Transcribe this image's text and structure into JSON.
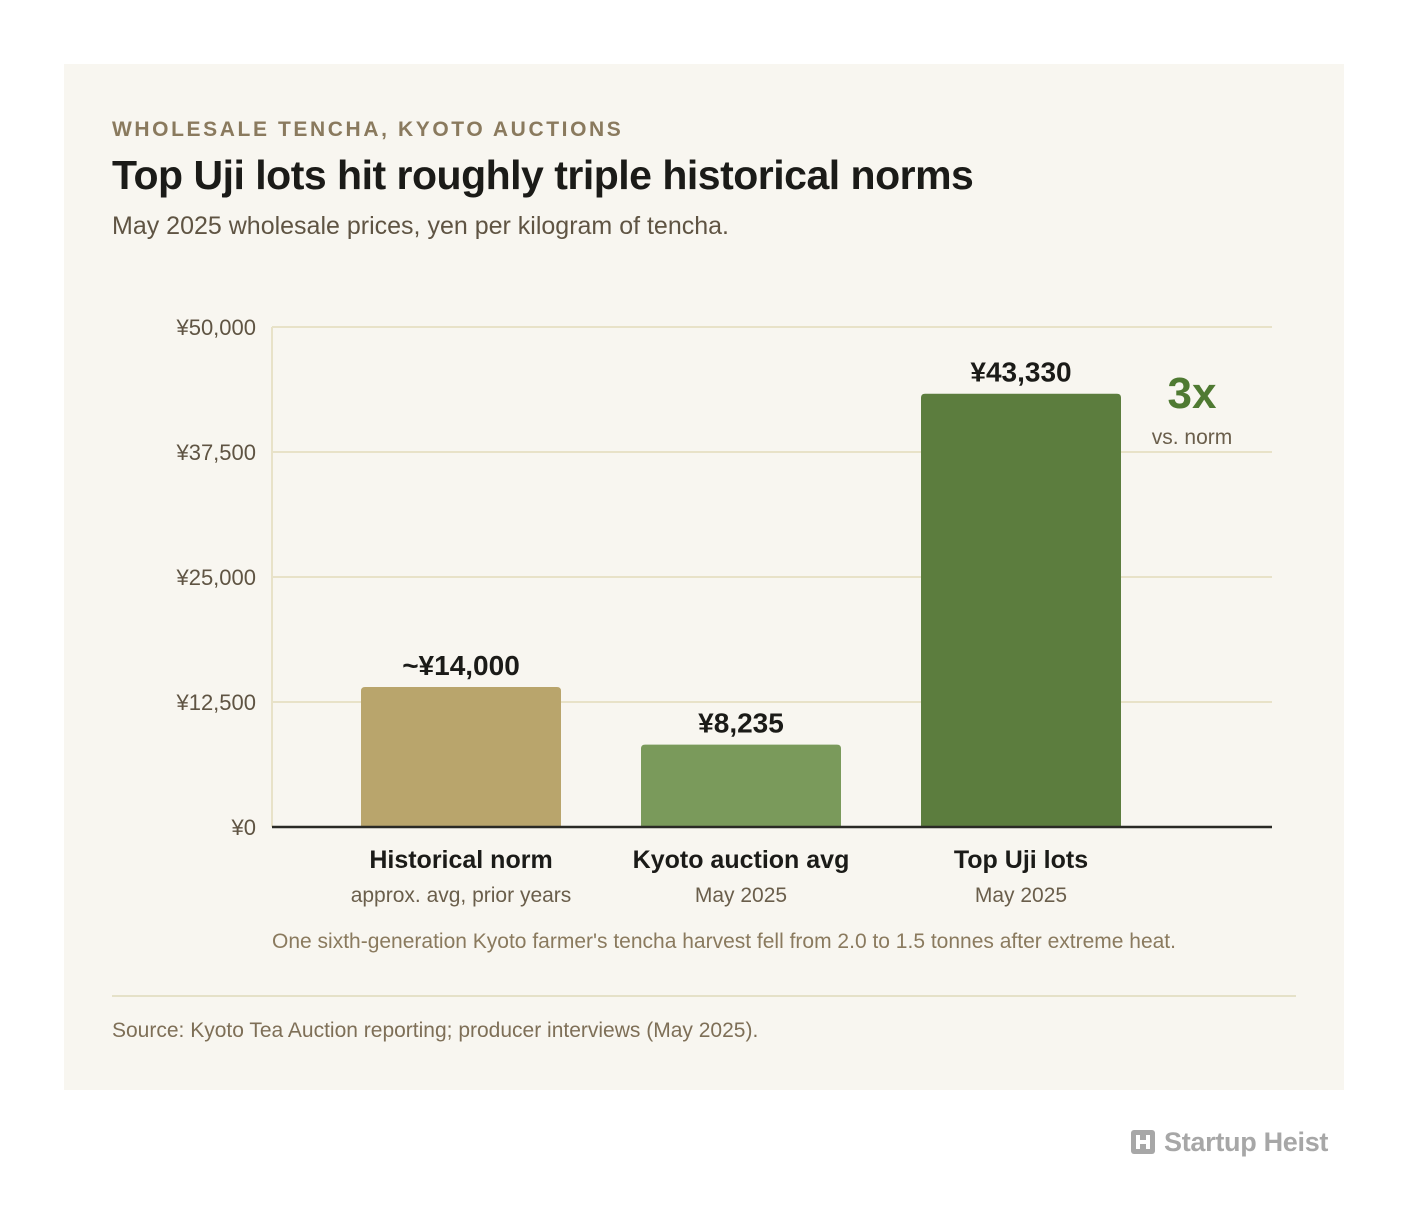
{
  "header": {
    "eyebrow": "WHOLESALE TENCHA, KYOTO AUCTIONS",
    "title": "Top Uji lots hit roughly triple historical norms",
    "subtitle": "May 2025 wholesale prices, yen per kilogram of tencha."
  },
  "chart_data": {
    "type": "bar",
    "categories": [
      "Historical norm",
      "Kyoto auction avg",
      "Top Uji lots"
    ],
    "category_sublabels": [
      "approx. avg, prior years",
      "May 2025",
      "May 2025"
    ],
    "values": [
      14000,
      8235,
      43330
    ],
    "value_labels": [
      "~¥14,000",
      "¥8,235",
      "¥43,330"
    ],
    "bar_colors": [
      "#b9a56c",
      "#7a9a5b",
      "#5c7d3e"
    ],
    "ylim": [
      0,
      50000
    ],
    "yticks": [
      0,
      12500,
      25000,
      37500,
      50000
    ],
    "ytick_labels": [
      "¥0",
      "¥12,500",
      "¥25,000",
      "¥37,500",
      "¥50,000"
    ],
    "grid": true,
    "callout": {
      "value": "3x",
      "label": "vs. norm",
      "color": "#4f7a32"
    },
    "xlabel": "",
    "ylabel": ""
  },
  "note": "One sixth-generation Kyoto farmer's tencha harvest fell from 2.0 to 1.5 tonnes after extreme heat.",
  "source": "Source: Kyoto Tea Auction reporting; producer interviews (May 2025).",
  "brand": {
    "name": "Startup Heist",
    "icon": "building-logo-icon"
  },
  "colors": {
    "background": "#f8f6f0",
    "accent": "#5c7d3e",
    "grid": "#e8e2c8",
    "axis": "#2a2a25"
  }
}
